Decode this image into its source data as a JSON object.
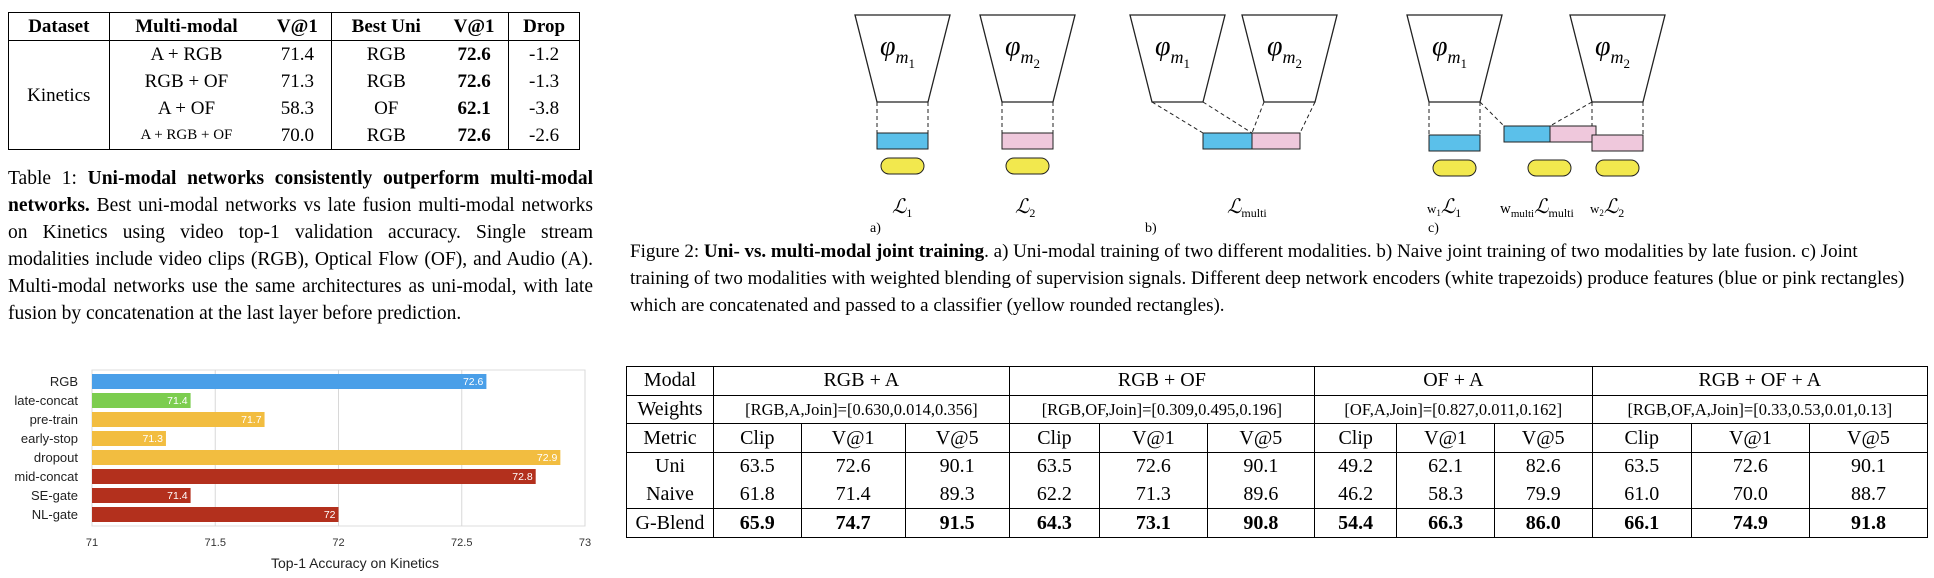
{
  "table1": {
    "headers": [
      "Dataset",
      "Multi-modal",
      "V@1",
      "Best Uni",
      "V@1",
      "Drop"
    ],
    "dataset": "Kinetics",
    "rows": [
      {
        "multi": "A + RGB",
        "v1": "71.4",
        "best": "RGB",
        "bv1": "72.6",
        "drop": "-1.2"
      },
      {
        "multi": "RGB + OF",
        "v1": "71.3",
        "best": "RGB",
        "bv1": "72.6",
        "drop": "-1.3"
      },
      {
        "multi": "A + OF",
        "v1": "58.3",
        "best": "OF",
        "bv1": "62.1",
        "drop": "-3.8"
      },
      {
        "multi": "A + RGB + OF",
        "v1": "70.0",
        "best": "RGB",
        "bv1": "72.6",
        "drop": "-2.6"
      }
    ]
  },
  "caption1": {
    "label": "Table 1:",
    "bold": "Uni-modal networks consistently outperform multi-modal networks.",
    "text": "Best uni-modal networks vs late fusion multi-modal networks on Kinetics using video top-1 validation accuracy. Single stream modalities include video clips (RGB), Optical Flow (OF), and Audio (A). Multi-modal networks use the same architectures as uni-modal, with late fusion by concatenation at the last layer before prediction."
  },
  "chart_data": {
    "type": "bar",
    "orientation": "horizontal",
    "categories": [
      "RGB",
      "late-concat",
      "pre-train",
      "early-stop",
      "dropout",
      "mid-concat",
      "SE-gate",
      "NL-gate"
    ],
    "values": [
      72.6,
      71.4,
      71.7,
      71.3,
      72.9,
      72.8,
      71.4,
      72
    ],
    "labels": [
      "72.6",
      "71.4",
      "71.7",
      "71.3",
      "72.9",
      "72.8",
      "71.4",
      "72"
    ],
    "colors": [
      "#4a9fe8",
      "#7ccd4f",
      "#f2bd40",
      "#f2bd40",
      "#f2bd40",
      "#b3301d",
      "#b3301d",
      "#b3301d"
    ],
    "xlim": [
      71,
      73
    ],
    "xticks": [
      "71",
      "71.5",
      "72",
      "72.5",
      "73"
    ],
    "xlabel": "Top-1 Accuracy on Kinetics",
    "grid": true
  },
  "figure2": {
    "phi1": "φ",
    "phi_sub1": "m",
    "phi_sub_sub1": "1",
    "phi_sub_sub2": "2",
    "loss_L": "ℒ",
    "sub_1": "1",
    "sub_2": "2",
    "sub_multi": "multi",
    "w1": "w",
    "w1_sub": "1",
    "w2": "w",
    "w2_sub": "2",
    "wmulti": "w",
    "wmulti_sub": "multi",
    "panel_a": "a)",
    "panel_b": "b)",
    "panel_c": "c)"
  },
  "caption2": {
    "label": "Figure 2:",
    "bold": "Uni- vs. multi-modal joint training",
    "text": ". a) Uni-modal training of two different modalities. b) Naive joint training of two modalities by late fusion. c) Joint training of two modalities with weighted blending of supervision signals. Different deep network encoders (white trapezoids) produce features (blue or pink rectangles) which are concatenated and passed to a classifier (yellow rounded rectangles)."
  },
  "table2": {
    "modal_label": "Modal",
    "weights_label": "Weights",
    "metric_label": "Metric",
    "groups": [
      {
        "name": "RGB + A",
        "weights": "[RGB,A,Join]=[0.630,0.014,0.356]"
      },
      {
        "name": "RGB + OF",
        "weights": "[RGB,OF,Join]=[0.309,0.495,0.196]"
      },
      {
        "name": "OF + A",
        "weights": "[OF,A,Join]=[0.827,0.011,0.162]"
      },
      {
        "name": "RGB + OF + A",
        "weights": "[RGB,OF,A,Join]=[0.33,0.53,0.01,0.13]"
      }
    ],
    "metrics": [
      "Clip",
      "V@1",
      "V@5"
    ],
    "rows": [
      {
        "name": "Uni",
        "values": [
          "63.5",
          "72.6",
          "90.1",
          "63.5",
          "72.6",
          "90.1",
          "49.2",
          "62.1",
          "82.6",
          "63.5",
          "72.6",
          "90.1"
        ]
      },
      {
        "name": "Naive",
        "values": [
          "61.8",
          "71.4",
          "89.3",
          "62.2",
          "71.3",
          "89.6",
          "46.2",
          "58.3",
          "79.9",
          "61.0",
          "70.0",
          "88.7"
        ]
      },
      {
        "name": "G-Blend",
        "values": [
          "65.9",
          "74.7",
          "91.5",
          "64.3",
          "73.1",
          "90.8",
          "54.4",
          "66.3",
          "86.0",
          "66.1",
          "74.9",
          "91.8"
        ]
      }
    ]
  }
}
